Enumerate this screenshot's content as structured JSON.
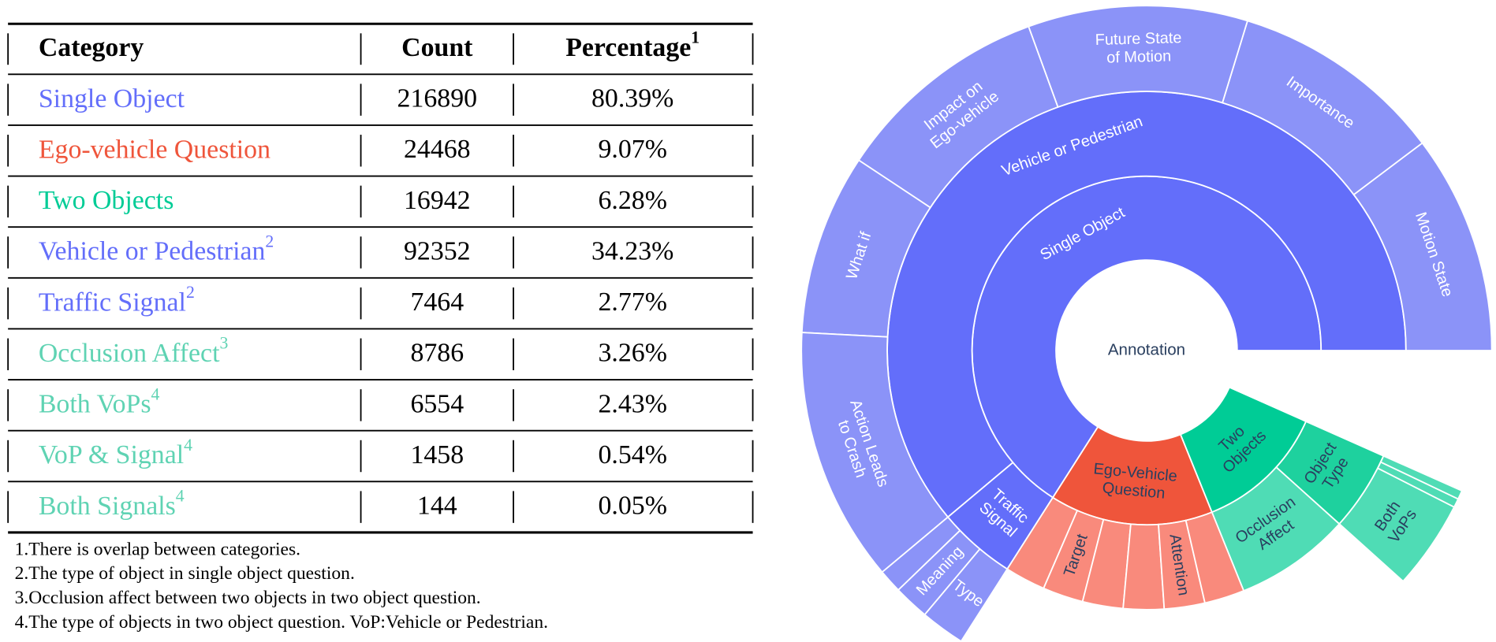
{
  "table": {
    "header": [
      {
        "text": "Category"
      },
      {
        "text": "Count"
      },
      {
        "text": "Percentage",
        "note": "1"
      }
    ],
    "rows": [
      {
        "category": {
          "text": "Single Object"
        },
        "count": 216890,
        "percentage": "80.39%",
        "color": "#636efa"
      },
      {
        "category": {
          "text": "Ego-vehicle Question"
        },
        "count": 24468,
        "percentage": "9.07%",
        "color": "#ef553b"
      },
      {
        "category": {
          "text": "Two Objects"
        },
        "count": 16942,
        "percentage": "6.28%",
        "color": "#00cc96"
      },
      {
        "category": {
          "text": "Vehicle or Pedestrian",
          "note": "2"
        },
        "count": 92352,
        "percentage": "34.23%",
        "color": "#636efa"
      },
      {
        "category": {
          "text": "Traffic Signal",
          "note": "2"
        },
        "count": 7464,
        "percentage": "2.77%",
        "color": "#636efa"
      },
      {
        "category": {
          "text": "Occlusion Affect",
          "note": "3"
        },
        "count": 8786,
        "percentage": "3.26%",
        "color": "#5fd3b3"
      },
      {
        "category": {
          "text": "Both VoPs",
          "note": "4"
        },
        "count": 6554,
        "percentage": "2.43%",
        "color": "#5fd3b3"
      },
      {
        "category": {
          "text": "VoP & Signal",
          "note": "4"
        },
        "count": 1458,
        "percentage": "0.54%",
        "color": "#5fd3b3"
      },
      {
        "category": {
          "text": "Both Signals",
          "note": "4"
        },
        "count": 144,
        "percentage": "0.05%",
        "color": "#5fd3b3"
      }
    ],
    "footnotes": [
      "1.There is overlap between categories.",
      "2.The type of object in single object question.",
      "3.Occlusion affect between two objects in two object question.",
      "4.The type of objects in two object question.  VoP:Vehicle or Pedestrian."
    ]
  },
  "chart_data": {
    "type": "sunburst",
    "center_label": "Annotation",
    "total": 360,
    "nodes": [
      {
        "label": [
          "Single Object"
        ],
        "parent": null,
        "value": 237.5,
        "color": "#636efa"
      },
      {
        "label": [
          "Ego-Vehicle",
          "Question"
        ],
        "parent": null,
        "value": 54.5,
        "color": "#ef553b"
      },
      {
        "label": [
          "Two",
          "Objects"
        ],
        "parent": null,
        "value": 44,
        "color": "#00cc96"
      },
      {
        "label": [
          "Vehicle or Pedestrian"
        ],
        "parent": 0,
        "value": 220,
        "color": "#636efa"
      },
      {
        "label": [
          "Traffic",
          "Signal"
        ],
        "parent": 0,
        "value": 17.5,
        "color": "#636efa"
      },
      {
        "label": null,
        "parent": 1,
        "value": 9.1,
        "color": "#f98a7c"
      },
      {
        "label": [
          "Target"
        ],
        "parent": 1,
        "value": 9.1,
        "color": "#f98a7c"
      },
      {
        "label": null,
        "parent": 1,
        "value": 9.1,
        "color": "#f98a7c"
      },
      {
        "label": null,
        "parent": 1,
        "value": 9.1,
        "color": "#f98a7c"
      },
      {
        "label": [
          "Attention"
        ],
        "parent": 1,
        "value": 9.1,
        "color": "#f98a7c"
      },
      {
        "label": null,
        "parent": 1,
        "value": 9,
        "color": "#f98a7c"
      },
      {
        "label": [
          "Occlusion",
          "Affect"
        ],
        "parent": 2,
        "value": 26,
        "color": "#4fdcb5"
      },
      {
        "label": [
          "Object",
          "Type"
        ],
        "parent": 2,
        "value": 18,
        "color": "#1ed19e"
      },
      {
        "label": [
          "Motion State"
        ],
        "parent": 3,
        "value": 37,
        "color": "#8b93f8"
      },
      {
        "label": [
          "Importance"
        ],
        "parent": 3,
        "value": 36,
        "color": "#8b93f8"
      },
      {
        "label": [
          "Future State",
          "of Motion"
        ],
        "parent": 3,
        "value": 37,
        "color": "#8b93f8"
      },
      {
        "label": [
          "Impact on",
          "Ego-vehicle"
        ],
        "parent": 3,
        "value": 36.5,
        "color": "#8b93f8"
      },
      {
        "label": [
          "What if"
        ],
        "parent": 3,
        "value": 30.5,
        "color": "#8b93f8"
      },
      {
        "label": [
          "Action Leads",
          "to Crash"
        ],
        "parent": 3,
        "value": 43,
        "color": "#8b93f8"
      },
      {
        "label": null,
        "parent": 4,
        "value": 4,
        "color": "#8b93f8"
      },
      {
        "label": [
          "Meaning"
        ],
        "parent": 4,
        "value": 6,
        "color": "#8b93f8"
      },
      {
        "label": [
          "Type"
        ],
        "parent": 4,
        "value": 7.5,
        "color": "#8b93f8"
      },
      {
        "label": [
          "Both",
          "VoPs"
        ],
        "parent": 12,
        "value": 15,
        "color": "#4fdcb5"
      },
      {
        "label": null,
        "parent": 12,
        "value": 1.5,
        "color": "#4fdcb5"
      },
      {
        "label": null,
        "parent": 12,
        "value": 1.5,
        "color": "#4fdcb5"
      }
    ]
  }
}
